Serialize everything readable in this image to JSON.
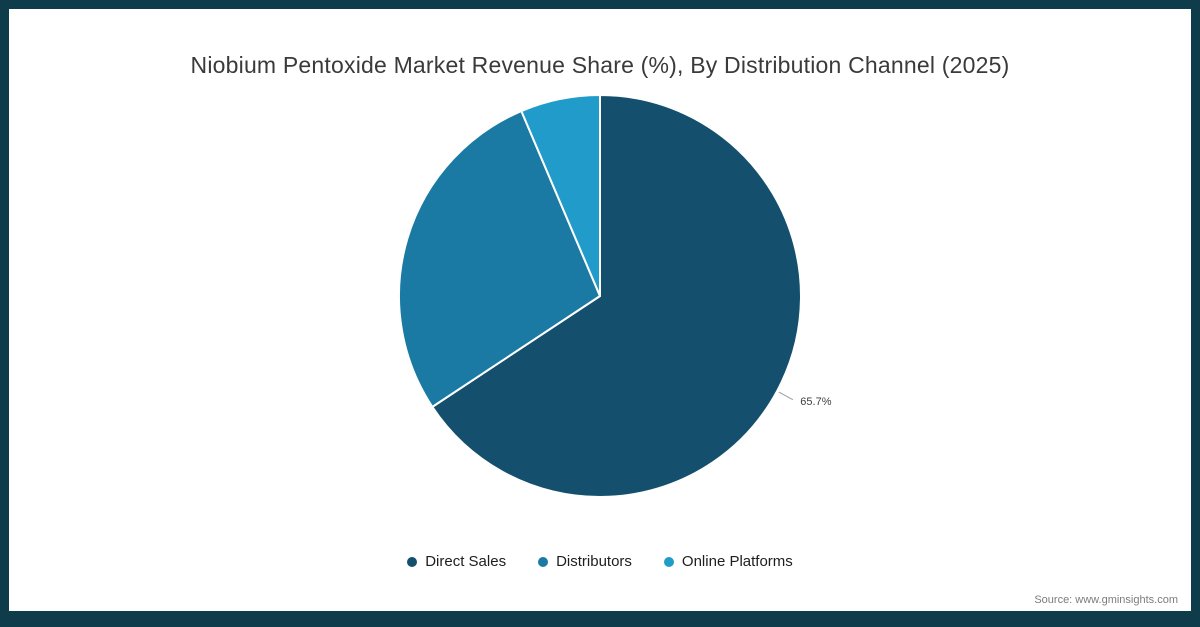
{
  "frame": {
    "border_color": "#0e3c4b"
  },
  "title": "Niobium Pentoxide Market Revenue Share (%), By Distribution Channel (2025)",
  "source": {
    "text": "Source: www.gminsights.com"
  },
  "chart_data": {
    "type": "pie",
    "title": "Niobium Pentoxide Market Revenue Share (%), By Distribution Channel (2025)",
    "unit": "%",
    "start_angle_deg": 0,
    "direction": "clockwise",
    "legend_position": "bottom",
    "slices": [
      {
        "label": "Direct Sales",
        "value": 65.7,
        "color": "#14506e",
        "data_label": "65.7%"
      },
      {
        "label": "Distributors",
        "value": 27.9,
        "color": "#1b7aa3",
        "data_label": ""
      },
      {
        "label": "Online Platforms",
        "value": 6.4,
        "color": "#209bca",
        "data_label": ""
      }
    ]
  }
}
